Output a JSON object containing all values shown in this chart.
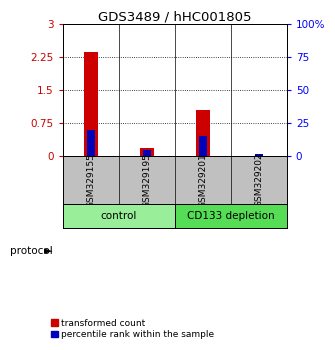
{
  "title": "GDS3489 / hHC001805",
  "samples": [
    "GSM329155",
    "GSM329195",
    "GSM329201",
    "GSM329202"
  ],
  "transformed_counts": [
    2.37,
    0.18,
    1.05,
    0.0
  ],
  "percentile_ranks_pct": [
    20.0,
    5.0,
    15.0,
    1.5
  ],
  "ylim_left": [
    0,
    3
  ],
  "ylim_right": [
    0,
    100
  ],
  "yticks_left": [
    0,
    0.75,
    1.5,
    2.25,
    3
  ],
  "yticks_right": [
    0,
    25,
    50,
    75,
    100
  ],
  "ytick_labels_left": [
    "0",
    "0.75",
    "1.5",
    "2.25",
    "3"
  ],
  "ytick_labels_right": [
    "0",
    "25",
    "50",
    "75",
    "100%"
  ],
  "bar_color_red": "#cc0000",
  "bar_color_blue": "#0000bb",
  "groups": [
    {
      "label": "control",
      "samples": [
        0,
        1
      ],
      "color": "#99ee99"
    },
    {
      "label": "CD133 depletion",
      "samples": [
        2,
        3
      ],
      "color": "#55dd55"
    }
  ],
  "protocol_label": "protocol",
  "legend_red": "transformed count",
  "legend_blue": "percentile rank within the sample",
  "background_color": "#ffffff",
  "plot_bg": "#ffffff",
  "bar_width": 0.25,
  "tick_box_color": "#c0c0c0"
}
